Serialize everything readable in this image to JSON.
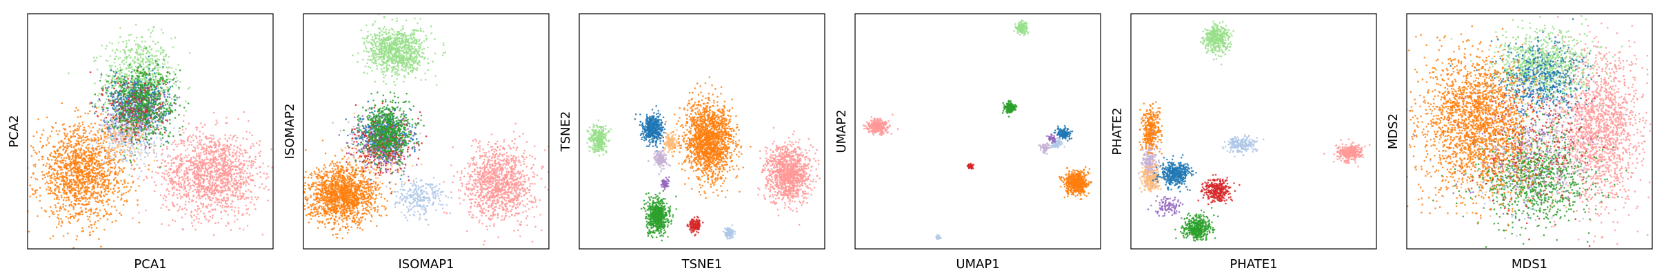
{
  "chart_data": [
    {
      "type": "scatter",
      "xlabel": "PCA1",
      "ylabel": "PCA2",
      "xlim": [
        0,
        100
      ],
      "ylim": [
        0,
        100
      ],
      "grid": false,
      "ticks": false,
      "series": [
        {
          "color": "#98df8a",
          "center": [
            45,
            70
          ],
          "spread": [
            7,
            10
          ],
          "count": 900
        },
        {
          "color": "#ff9896",
          "center": [
            75,
            32
          ],
          "spread": [
            10,
            9
          ],
          "count": 1400
        },
        {
          "color": "#ff7f0e",
          "center": [
            22,
            32
          ],
          "spread": [
            9,
            10
          ],
          "count": 1500
        },
        {
          "color": "#aec7e8",
          "center": [
            42,
            48
          ],
          "spread": [
            6,
            6
          ],
          "count": 250
        },
        {
          "color": "#c5b0d5",
          "center": [
            40,
            52
          ],
          "spread": [
            5,
            5
          ],
          "count": 150
        },
        {
          "color": "#ffbb78",
          "center": [
            40,
            50
          ],
          "spread": [
            5,
            5
          ],
          "count": 150
        },
        {
          "color": "#1f77b4",
          "center": [
            45,
            62
          ],
          "spread": [
            6,
            6
          ],
          "count": 500
        },
        {
          "color": "#d62728",
          "center": [
            45,
            60
          ],
          "spread": [
            6,
            7
          ],
          "count": 250
        },
        {
          "color": "#9467bd",
          "center": [
            44,
            60
          ],
          "spread": [
            6,
            6
          ],
          "count": 150
        },
        {
          "color": "#2ca02c",
          "center": [
            47,
            62
          ],
          "spread": [
            7,
            8
          ],
          "count": 500
        }
      ]
    },
    {
      "type": "scatter",
      "xlabel": "ISOMAP1",
      "ylabel": "ISOMAP2",
      "xlim": [
        0,
        100
      ],
      "ylim": [
        0,
        100
      ],
      "grid": false,
      "ticks": false,
      "series": [
        {
          "color": "#98df8a",
          "center": [
            38,
            84
          ],
          "spread": [
            6,
            5
          ],
          "count": 900
        },
        {
          "color": "#ff9896",
          "center": [
            80,
            28
          ],
          "spread": [
            7,
            8
          ],
          "count": 1100
        },
        {
          "color": "#aec7e8",
          "center": [
            47,
            22
          ],
          "spread": [
            5,
            4
          ],
          "count": 250
        },
        {
          "color": "#ff7f0e",
          "center": [
            16,
            23
          ],
          "spread": [
            7,
            6
          ],
          "count": 1500
        },
        {
          "color": "#c5b0d5",
          "center": [
            30,
            45
          ],
          "spread": [
            6,
            6
          ],
          "count": 150
        },
        {
          "color": "#ffbb78",
          "center": [
            30,
            40
          ],
          "spread": [
            6,
            6
          ],
          "count": 150
        },
        {
          "color": "#1f77b4",
          "center": [
            33,
            48
          ],
          "spread": [
            5,
            5
          ],
          "count": 500
        },
        {
          "color": "#d62728",
          "center": [
            33,
            44
          ],
          "spread": [
            6,
            6
          ],
          "count": 300
        },
        {
          "color": "#9467bd",
          "center": [
            32,
            44
          ],
          "spread": [
            6,
            6
          ],
          "count": 150
        },
        {
          "color": "#2ca02c",
          "center": [
            34,
            50
          ],
          "spread": [
            5,
            6
          ],
          "count": 600
        }
      ]
    },
    {
      "type": "scatter",
      "xlabel": "TSNE1",
      "ylabel": "TSNE2",
      "xlim": [
        0,
        100
      ],
      "ylim": [
        0,
        100
      ],
      "grid": false,
      "ticks": false,
      "series": [
        {
          "color": "#98df8a",
          "center": [
            8,
            47
          ],
          "spread": [
            1.8,
            2.8
          ],
          "count": 300
        },
        {
          "color": "#1f77b4",
          "center": [
            30,
            51
          ],
          "spread": [
            2,
            3
          ],
          "count": 500
        },
        {
          "color": "#ffbb78",
          "center": [
            37,
            45
          ],
          "spread": [
            1.3,
            1.8
          ],
          "count": 150
        },
        {
          "color": "#c5b0d5",
          "center": [
            33,
            38
          ],
          "spread": [
            1.3,
            1.8
          ],
          "count": 150
        },
        {
          "color": "#ff7f0e",
          "center": [
            53,
            46
          ],
          "spread": [
            5,
            8
          ],
          "count": 1600
        },
        {
          "color": "#ff9896",
          "center": [
            85,
            32
          ],
          "spread": [
            4.5,
            6
          ],
          "count": 1100
        },
        {
          "color": "#9467bd",
          "center": [
            35,
            28
          ],
          "spread": [
            0.8,
            1.2
          ],
          "count": 60
        },
        {
          "color": "#2ca02c",
          "center": [
            32,
            14
          ],
          "spread": [
            2.2,
            3.5
          ],
          "count": 600
        },
        {
          "color": "#d62728",
          "center": [
            47,
            10
          ],
          "spread": [
            1.2,
            1.5
          ],
          "count": 150
        },
        {
          "color": "#aec7e8",
          "center": [
            61,
            7
          ],
          "spread": [
            1,
            1.2
          ],
          "count": 100
        }
      ]
    },
    {
      "type": "scatter",
      "xlabel": "UMAP1",
      "ylabel": "UMAP2",
      "xlim": [
        0,
        100
      ],
      "ylim": [
        0,
        100
      ],
      "grid": false,
      "ticks": false,
      "series": [
        {
          "color": "#98df8a",
          "center": [
            68,
            94
          ],
          "spread": [
            1.2,
            1.2
          ],
          "count": 150
        },
        {
          "color": "#ff9896",
          "center": [
            9,
            52
          ],
          "spread": [
            2,
            1.6
          ],
          "count": 300
        },
        {
          "color": "#2ca02c",
          "center": [
            63,
            60
          ],
          "spread": [
            1.2,
            1.2
          ],
          "count": 150
        },
        {
          "color": "#1f77b4",
          "center": [
            85,
            49
          ],
          "spread": [
            1.5,
            1.2
          ],
          "count": 150
        },
        {
          "color": "#aec7e8",
          "center": [
            82,
            45
          ],
          "spread": [
            1.2,
            1
          ],
          "count": 80
        },
        {
          "color": "#c5b0d5",
          "center": [
            77,
            43
          ],
          "spread": [
            1,
            1
          ],
          "count": 60
        },
        {
          "color": "#9467bd",
          "center": [
            80,
            47
          ],
          "spread": [
            0.8,
            0.8
          ],
          "count": 40
        },
        {
          "color": "#ff7f0e",
          "center": [
            90,
            28
          ],
          "spread": [
            2.2,
            2.4
          ],
          "count": 600
        },
        {
          "color": "#d62728",
          "center": [
            47,
            35
          ],
          "spread": [
            0.8,
            0.6
          ],
          "count": 40
        },
        {
          "color": "#aec7e8",
          "center": [
            34,
            5
          ],
          "spread": [
            0.6,
            0.5
          ],
          "count": 20
        }
      ]
    },
    {
      "type": "scatter",
      "xlabel": "PHATE1",
      "ylabel": "PHATE2",
      "xlim": [
        0,
        100
      ],
      "ylim": [
        0,
        100
      ],
      "grid": false,
      "ticks": false,
      "series": [
        {
          "color": "#98df8a",
          "center": [
            35,
            89
          ],
          "spread": [
            2.5,
            3
          ],
          "count": 400
        },
        {
          "color": "#ff9896",
          "center": [
            89,
            41
          ],
          "spread": [
            2.5,
            1.8
          ],
          "count": 300
        },
        {
          "color": "#aec7e8",
          "center": [
            45,
            44
          ],
          "spread": [
            3,
            1.8
          ],
          "count": 200
        },
        {
          "color": "#ff7f0e",
          "center": [
            8,
            50
          ],
          "spread": [
            1.8,
            5
          ],
          "count": 350
        },
        {
          "color": "#c5b0d5",
          "center": [
            8,
            35
          ],
          "spread": [
            1.5,
            4
          ],
          "count": 250
        },
        {
          "color": "#ffbb78",
          "center": [
            8,
            30
          ],
          "spread": [
            2,
            3
          ],
          "count": 200
        },
        {
          "color": "#1f77b4",
          "center": [
            18,
            32
          ],
          "spread": [
            3,
            2.5
          ],
          "count": 400
        },
        {
          "color": "#d62728",
          "center": [
            35,
            25
          ],
          "spread": [
            2.5,
            2.5
          ],
          "count": 300
        },
        {
          "color": "#9467bd",
          "center": [
            15,
            18
          ],
          "spread": [
            3,
            2
          ],
          "count": 100
        },
        {
          "color": "#2ca02c",
          "center": [
            27,
            9
          ],
          "spread": [
            3,
            2.5
          ],
          "count": 400
        }
      ]
    },
    {
      "type": "scatter",
      "xlabel": "MDS1",
      "ylabel": "MDS2",
      "xlim": [
        0,
        100
      ],
      "ylim": [
        0,
        100
      ],
      "grid": false,
      "ticks": false,
      "series": [
        {
          "color": "#ff9896",
          "center": [
            78,
            52
          ],
          "spread": [
            9,
            16
          ],
          "count": 1600
        },
        {
          "color": "#98df8a",
          "center": [
            55,
            78
          ],
          "spread": [
            10,
            7
          ],
          "count": 900
        },
        {
          "color": "#1f77b4",
          "center": [
            55,
            72
          ],
          "spread": [
            9,
            8
          ],
          "count": 500
        },
        {
          "color": "#2ca02c",
          "center": [
            52,
            30
          ],
          "spread": [
            11,
            10
          ],
          "count": 900
        },
        {
          "color": "#d62728",
          "center": [
            50,
            40
          ],
          "spread": [
            12,
            12
          ],
          "count": 300
        },
        {
          "color": "#9467bd",
          "center": [
            50,
            40
          ],
          "spread": [
            12,
            12
          ],
          "count": 150
        },
        {
          "color": "#ffbb78",
          "center": [
            45,
            40
          ],
          "spread": [
            12,
            12
          ],
          "count": 150
        },
        {
          "color": "#aec7e8",
          "center": [
            50,
            35
          ],
          "spread": [
            12,
            12
          ],
          "count": 200
        },
        {
          "color": "#c5b0d5",
          "center": [
            50,
            45
          ],
          "spread": [
            12,
            12
          ],
          "count": 150
        },
        {
          "color": "#ff7f0e",
          "center": [
            28,
            54
          ],
          "spread": [
            11,
            15
          ],
          "count": 2000
        }
      ]
    }
  ]
}
